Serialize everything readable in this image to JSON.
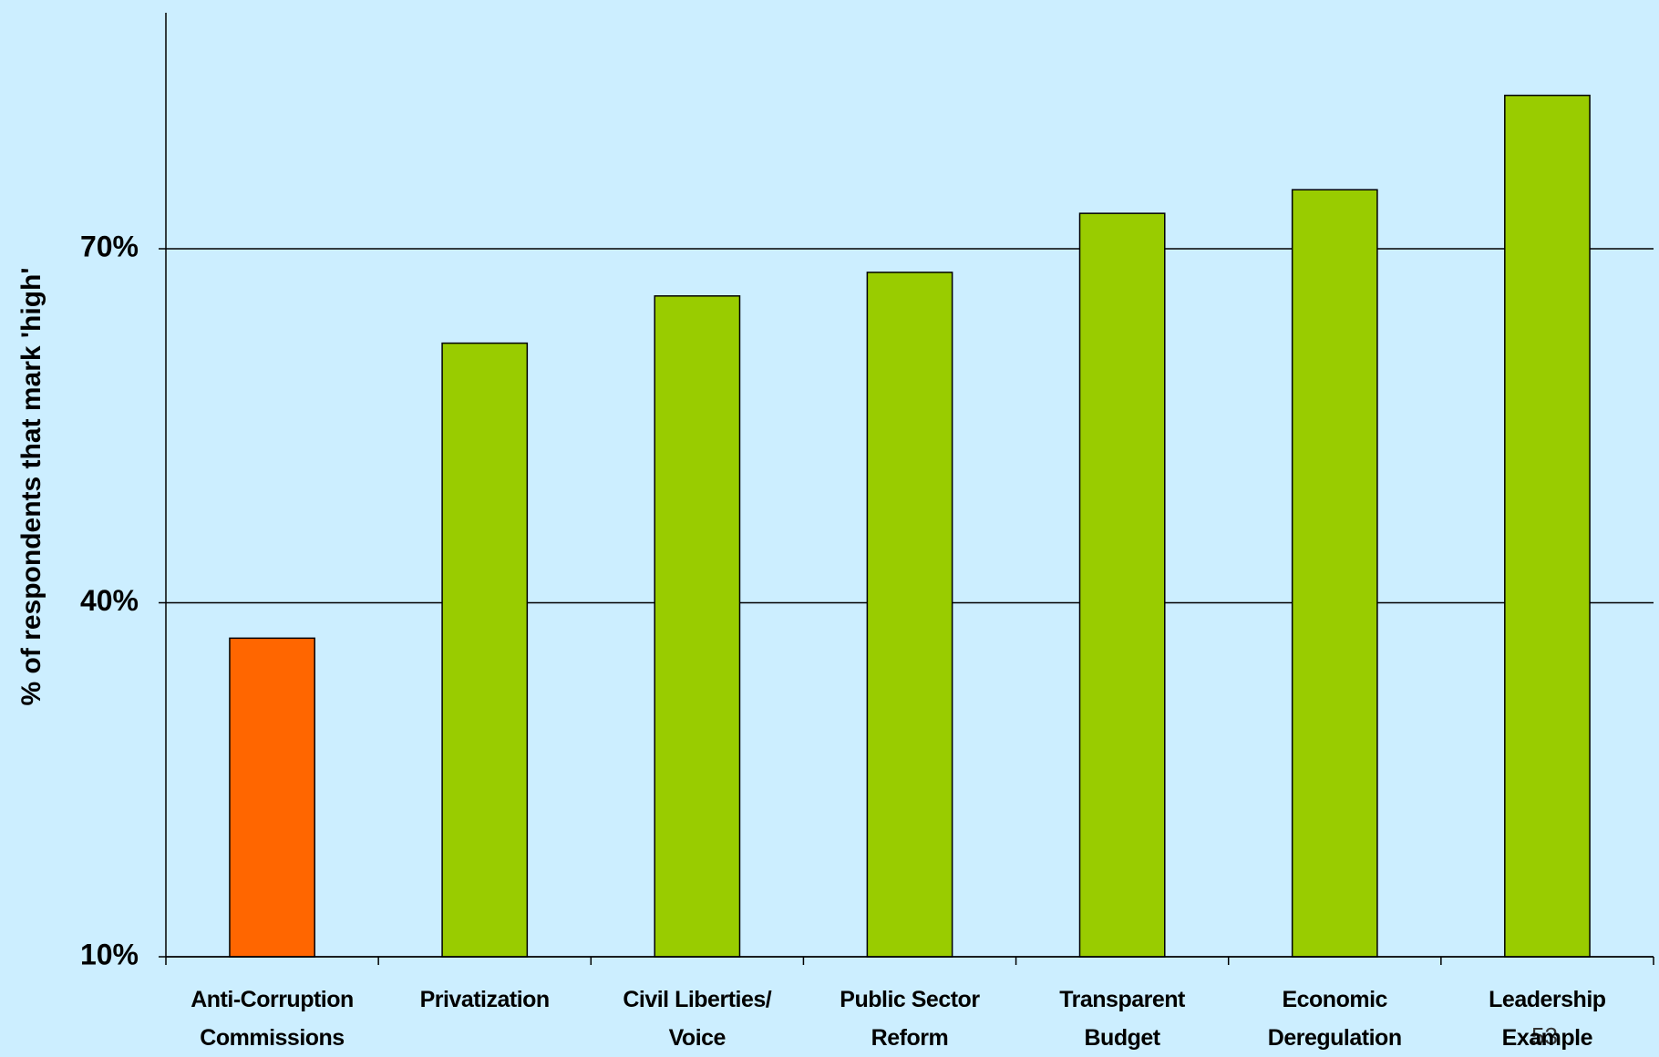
{
  "chart_data": {
    "type": "bar",
    "y_axis_label": "% of respondents that mark 'high'",
    "categories": [
      "Anti-Corruption\nCommissions",
      "Privatization",
      "Civil Liberties/\nVoice",
      "Public Sector\nReform",
      "Transparent\nBudget",
      "Economic\nDeregulation",
      "Leadership\nExample"
    ],
    "values": [
      37,
      62,
      66,
      68,
      73,
      75,
      83
    ],
    "colors": [
      "#ff6600",
      "#99cc00",
      "#99cc00",
      "#99cc00",
      "#99cc00",
      "#99cc00",
      "#99cc00"
    ],
    "ylim": [
      10,
      90
    ],
    "yticks": [
      {
        "value": 10,
        "label": "10%"
      },
      {
        "value": 40,
        "label": "40%"
      },
      {
        "value": 70,
        "label": "70%"
      }
    ],
    "grid": true,
    "page_number": "53"
  }
}
